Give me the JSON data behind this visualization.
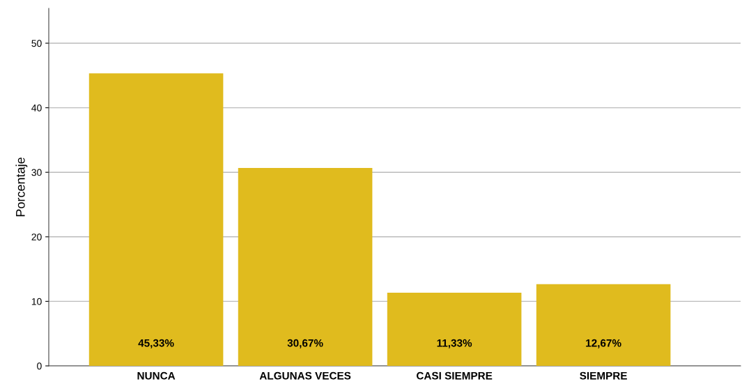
{
  "chart_data": {
    "type": "bar",
    "ylabel": "Porcentaje",
    "categories": [
      "NUNCA",
      "ALGUNAS VECES",
      "CASI SIEMPRE",
      "SIEMPRE"
    ],
    "values": [
      45.33,
      30.67,
      11.33,
      12.67
    ],
    "color": "#e0bb1e",
    "value_labels": [
      "45,33%",
      "30,67%",
      "11,33%",
      "12,67%"
    ],
    "ylim": [
      0,
      55.4
    ],
    "yticks": [
      0,
      10,
      20,
      30,
      40,
      50
    ],
    "grid": "y"
  }
}
